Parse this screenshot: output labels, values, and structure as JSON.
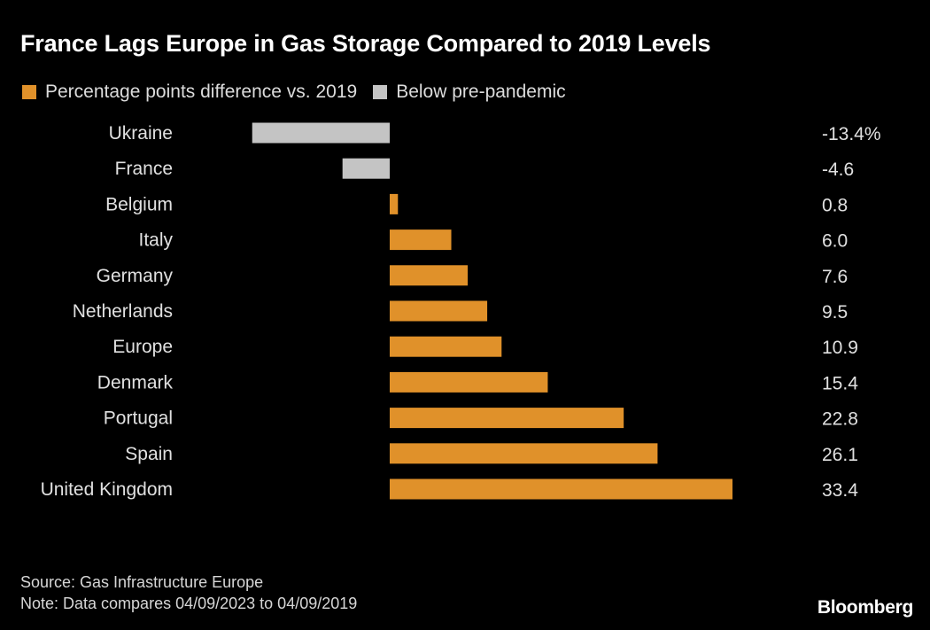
{
  "chart_data": {
    "type": "bar",
    "orientation": "horizontal",
    "title": "France Lags Europe in Gas Storage Compared to 2019 Levels",
    "legend": [
      {
        "label": "Percentage points difference vs. 2019",
        "color": "#e0912a"
      },
      {
        "label": "Below pre-pandemic",
        "color": "#c4c4c4"
      }
    ],
    "legend_position": "top-left",
    "categories": [
      "Ukraine",
      "France",
      "Belgium",
      "Italy",
      "Germany",
      "Netherlands",
      "Europe",
      "Denmark",
      "Portugal",
      "Spain",
      "United Kingdom"
    ],
    "values": [
      -13.4,
      -4.6,
      0.8,
      6.0,
      7.6,
      9.5,
      10.9,
      15.4,
      22.8,
      26.1,
      33.4
    ],
    "value_labels": [
      "-13.4%",
      "-4.6",
      "0.8",
      "6.0",
      "7.6",
      "9.5",
      "10.9",
      "15.4",
      "22.8",
      "26.1",
      "33.4"
    ],
    "xlim": [
      -13.4,
      33.4
    ],
    "grid": false,
    "colors": {
      "positive": "#e0912a",
      "negative": "#c4c4c4",
      "background": "#000000"
    }
  },
  "footer": {
    "source": "Source: Gas Infrastructure Europe",
    "note": "Note: Data compares 04/09/2023 to 04/09/2019"
  },
  "logo": "Bloomberg"
}
